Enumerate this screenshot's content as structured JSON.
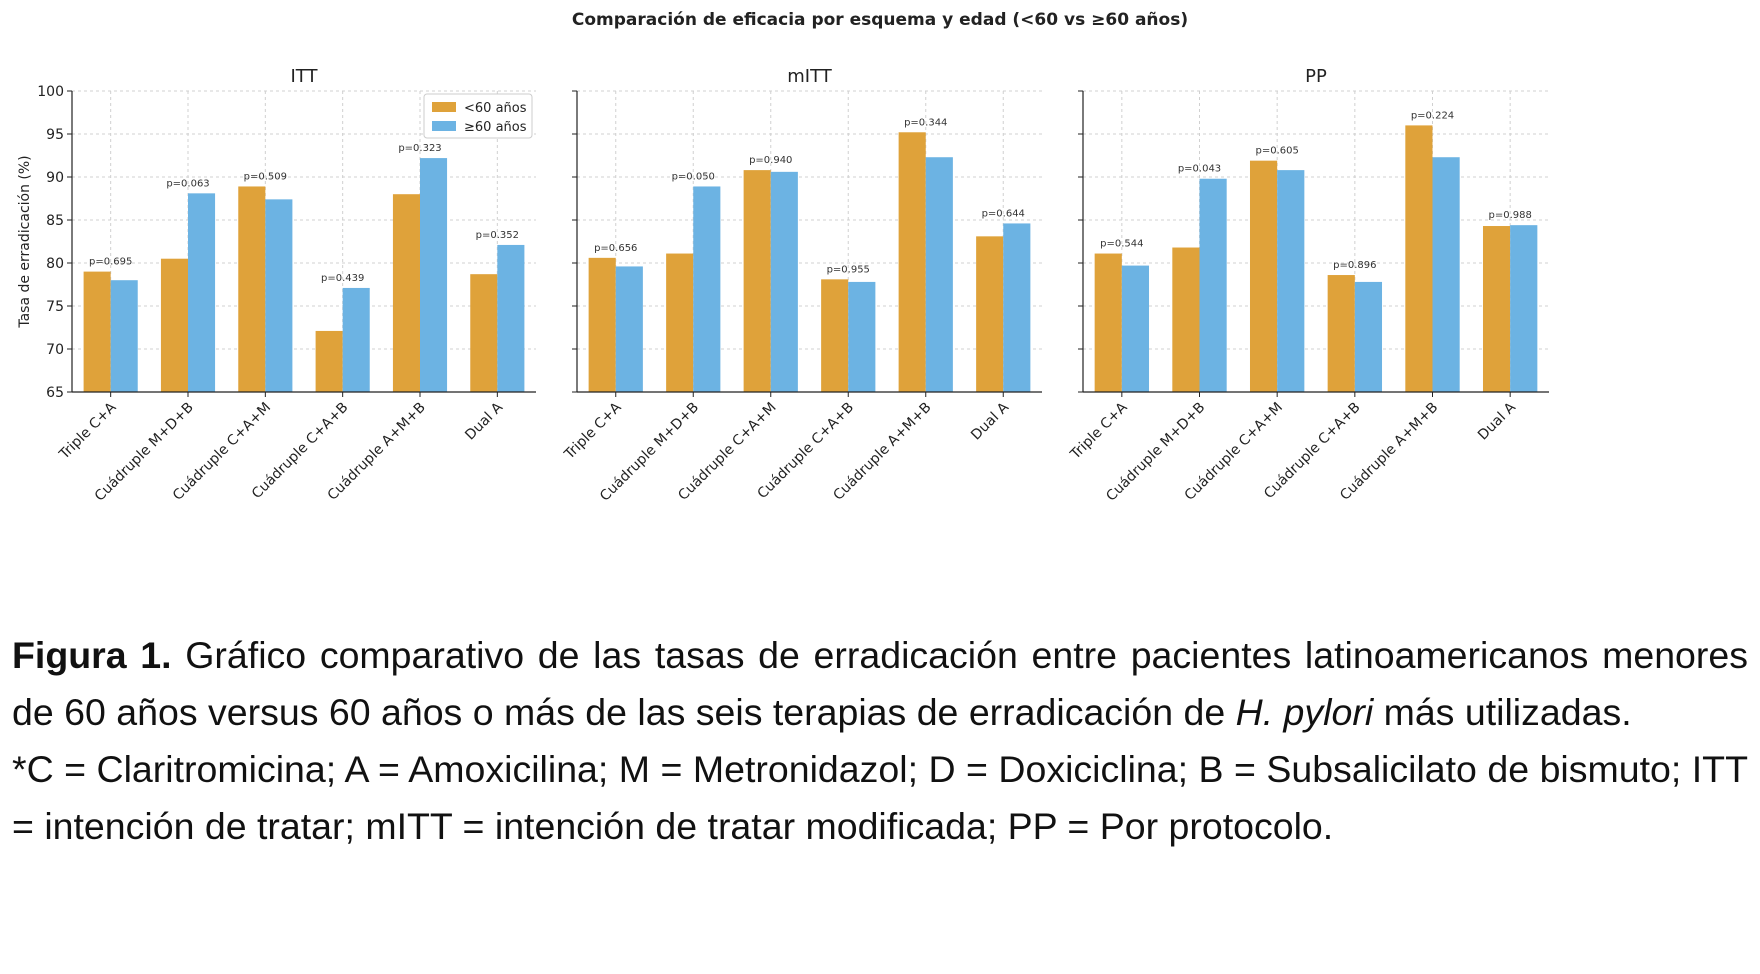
{
  "figure": {
    "suptitle": "Comparación de eficacia por esquema y edad (<60 vs ≥60 años)"
  },
  "chart_data": [
    {
      "type": "bar",
      "title": "ITT",
      "ylabel": "Tasa de erradicación (%)",
      "ylim": [
        65,
        100
      ],
      "yticks": [
        65,
        70,
        75,
        80,
        85,
        90,
        95,
        100
      ],
      "grid": true,
      "legend": "top-right",
      "categories": [
        "Triple C+A",
        "Cuádruple M+D+B",
        "Cuádruple C+A+M",
        "Cuádruple C+A+B",
        "Cuádruple A+M+B",
        "Dual A"
      ],
      "series": [
        {
          "name": "<60 años",
          "color": "#DFA23A",
          "values": [
            79.0,
            80.5,
            88.9,
            72.1,
            88.0,
            78.7
          ]
        },
        {
          "name": "≥60 años",
          "color": "#6CB3E3",
          "values": [
            78.0,
            88.1,
            87.4,
            77.1,
            92.2,
            82.1
          ]
        }
      ],
      "annotations": [
        "p=0.695",
        "p=0.063",
        "p=0.509",
        "p=0.439",
        "p=0.323",
        "p=0.352"
      ]
    },
    {
      "type": "bar",
      "title": "mITT",
      "ylim": [
        65,
        100
      ],
      "grid": true,
      "categories": [
        "Triple C+A",
        "Cuádruple M+D+B",
        "Cuádruple C+A+M",
        "Cuádruple C+A+B",
        "Cuádruple A+M+B",
        "Dual A"
      ],
      "series": [
        {
          "name": "<60 años",
          "color": "#DFA23A",
          "values": [
            80.6,
            81.1,
            90.8,
            78.1,
            95.2,
            83.1
          ]
        },
        {
          "name": "≥60 años",
          "color": "#6CB3E3",
          "values": [
            79.6,
            88.9,
            90.6,
            77.8,
            92.3,
            84.6
          ]
        }
      ],
      "annotations": [
        "p=0.656",
        "p=0.050",
        "p=0.940",
        "p=0.955",
        "p=0.344",
        "p=0.644"
      ]
    },
    {
      "type": "bar",
      "title": "PP",
      "ylim": [
        65,
        100
      ],
      "grid": true,
      "categories": [
        "Triple C+A",
        "Cuádruple M+D+B",
        "Cuádruple C+A+M",
        "Cuádruple C+A+B",
        "Cuádruple A+M+B",
        "Dual A"
      ],
      "series": [
        {
          "name": "<60 años",
          "color": "#DFA23A",
          "values": [
            81.1,
            81.8,
            91.9,
            78.6,
            96.0,
            84.3
          ]
        },
        {
          "name": "≥60 años",
          "color": "#6CB3E3",
          "values": [
            79.7,
            89.8,
            90.8,
            77.8,
            92.3,
            84.4
          ]
        }
      ],
      "annotations": [
        "p=0.544",
        "p=0.043",
        "p=0.605",
        "p=0.896",
        "p=0.224",
        "p=0.988"
      ]
    }
  ],
  "caption": {
    "label": "Figura 1.",
    "text1": " Gráfico comparativo de las tasas de erradicación entre pacientes latinoamericanos menores de 60 años versus 60 años o más de las seis terapias de erradicación de ",
    "species": "H. pylori",
    "text2": " más utilizadas.",
    "abbreviations": "*C = Claritromicina; A = Amoxicilina; M = Metronidazol; D = Doxiciclina; B = Subsalicilato de bismuto; ITT = intención de tratar; mITT = intención de tratar modificada; PP = Por protocolo."
  }
}
